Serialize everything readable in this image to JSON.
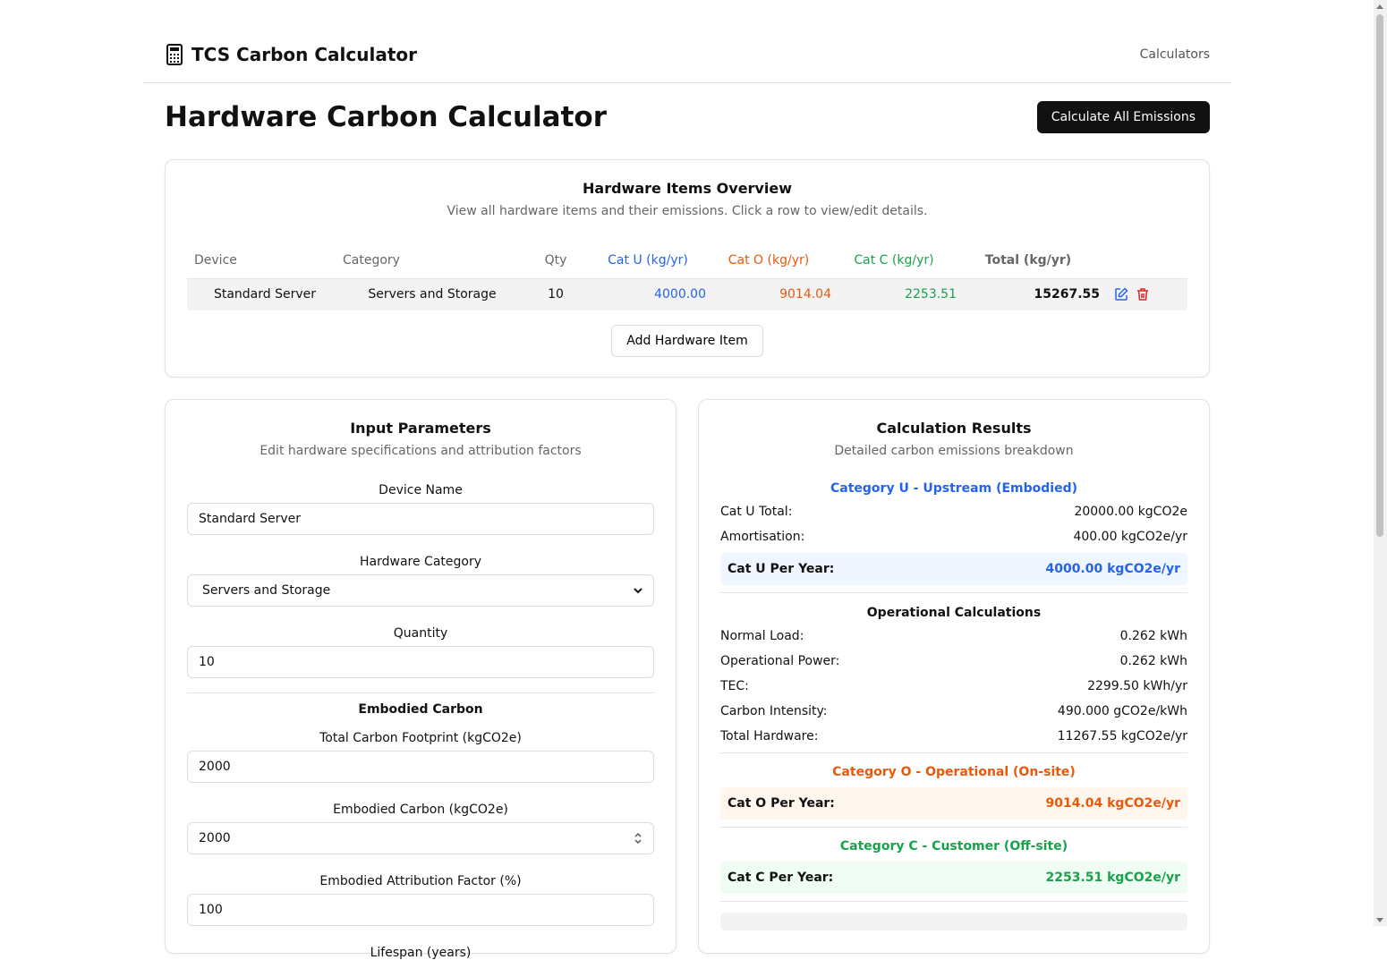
{
  "header": {
    "brand": "TCS Carbon Calculator",
    "nav": "Calculators"
  },
  "page": {
    "title": "Hardware Carbon Calculator",
    "calculate_button": "Calculate All Emissions"
  },
  "overview": {
    "title": "Hardware Items Overview",
    "subtitle": "View all hardware items and their emissions. Click a row to view/edit details.",
    "columns": [
      "Device",
      "Category",
      "Qty",
      "Cat U (kg/yr)",
      "Cat O (kg/yr)",
      "Cat C (kg/yr)",
      "Total (kg/yr)"
    ],
    "rows": [
      {
        "device": "Standard Server",
        "category": "Servers and Storage",
        "qty": "10",
        "cat_u": "4000.00",
        "cat_o": "9014.04",
        "cat_c": "2253.51",
        "total": "15267.55"
      }
    ],
    "add_button": "Add Hardware Item"
  },
  "inputs": {
    "title": "Input Parameters",
    "subtitle": "Edit hardware specifications and attribution factors",
    "device_name_label": "Device Name",
    "device_name": "Standard Server",
    "category_label": "Hardware Category",
    "category": "Servers and Storage",
    "quantity_label": "Quantity",
    "quantity": "10",
    "embodied_title": "Embodied Carbon",
    "total_footprint_label": "Total Carbon Footprint (kgCO2e)",
    "total_footprint": "2000",
    "embodied_label": "Embodied Carbon (kgCO2e)",
    "embodied": "2000",
    "attribution_label": "Embodied Attribution Factor (%)",
    "attribution": "100",
    "lifespan_label": "Lifespan (years)"
  },
  "results": {
    "title": "Calculation Results",
    "subtitle": "Detailed carbon emissions breakdown",
    "cat_u_title": "Category U - Upstream (Embodied)",
    "cat_u_rows": [
      {
        "label": "Cat U Total:",
        "value": "20000.00 kgCO2e"
      },
      {
        "label": "Amortisation:",
        "value": "400.00 kgCO2e/yr"
      }
    ],
    "cat_u_per_year_label": "Cat U Per Year:",
    "cat_u_per_year": "4000.00 kgCO2e/yr",
    "op_title": "Operational Calculations",
    "op_rows": [
      {
        "label": "Normal Load:",
        "value": "0.262 kWh"
      },
      {
        "label": "Operational Power:",
        "value": "0.262 kWh"
      },
      {
        "label": "TEC:",
        "value": "2299.50 kWh/yr"
      },
      {
        "label": "Carbon Intensity:",
        "value": "490.000 gCO2e/kWh"
      },
      {
        "label": "Total Hardware:",
        "value": "11267.55 kgCO2e/yr"
      }
    ],
    "cat_o_title": "Category O - Operational (On-site)",
    "cat_o_per_year_label": "Cat O Per Year:",
    "cat_o_per_year": "9014.04 kgCO2e/yr",
    "cat_c_title": "Category C - Customer (Off-site)",
    "cat_c_per_year_label": "Cat C Per Year:",
    "cat_c_per_year": "2253.51 kgCO2e/yr"
  },
  "colors": {
    "cat_u": "#2563eb",
    "cat_o": "#ea580c",
    "cat_c": "#16a34a"
  }
}
